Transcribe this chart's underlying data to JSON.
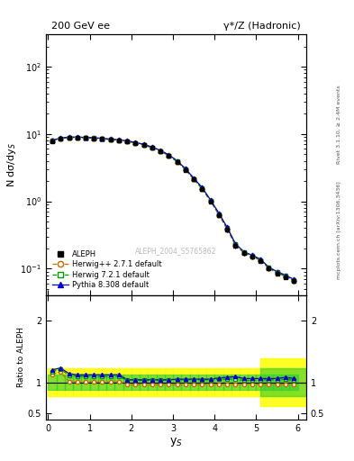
{
  "title_left": "200 GeV ee",
  "title_right": "γ*/Z (Hadronic)",
  "ylabel_main": "N dσ/dy$_S$",
  "ylabel_ratio": "Ratio to ALEPH",
  "xlabel": "y$_S$",
  "right_label_top": "Rivet 3.1.10, ≥ 2.4M events",
  "right_label_bottom": "mcplots.cern.ch [arXiv:1306.3436]",
  "watermark": "ALEPH_2004_S5765862",
  "ylim_main": [
    0.04,
    300
  ],
  "ylim_ratio": [
    0.4,
    2.4
  ],
  "yticks_ratio": [
    0.5,
    1.0,
    2.0
  ],
  "yticklabels_ratio": [
    "0.5",
    "1",
    "2"
  ],
  "xlim": [
    -0.05,
    6.2
  ],
  "x_data": [
    0.1,
    0.3,
    0.5,
    0.7,
    0.9,
    1.1,
    1.3,
    1.5,
    1.7,
    1.9,
    2.1,
    2.3,
    2.5,
    2.7,
    2.9,
    3.1,
    3.3,
    3.5,
    3.7,
    3.9,
    4.1,
    4.3,
    4.5,
    4.7,
    4.9,
    5.1,
    5.3,
    5.5,
    5.7,
    5.9
  ],
  "aleph_y": [
    7.8,
    8.5,
    8.8,
    8.8,
    8.7,
    8.6,
    8.4,
    8.2,
    8.0,
    7.7,
    7.3,
    6.8,
    6.2,
    5.5,
    4.7,
    3.8,
    2.9,
    2.1,
    1.5,
    1.0,
    0.62,
    0.38,
    0.22,
    0.17,
    0.15,
    0.13,
    0.1,
    0.085,
    0.075,
    0.065
  ],
  "aleph_err": [
    0.3,
    0.3,
    0.3,
    0.3,
    0.3,
    0.3,
    0.3,
    0.3,
    0.28,
    0.26,
    0.24,
    0.22,
    0.18,
    0.16,
    0.14,
    0.12,
    0.09,
    0.08,
    0.06,
    0.05,
    0.04,
    0.03,
    0.02,
    0.015,
    0.012,
    0.01,
    0.008,
    0.007,
    0.006,
    0.005
  ],
  "herwig_pp_y": [
    7.9,
    8.5,
    8.85,
    8.85,
    8.75,
    8.65,
    8.45,
    8.25,
    8.05,
    7.75,
    7.35,
    6.85,
    6.25,
    5.55,
    4.75,
    3.85,
    2.95,
    2.12,
    1.52,
    1.01,
    0.63,
    0.385,
    0.222,
    0.172,
    0.152,
    0.132,
    0.101,
    0.086,
    0.076,
    0.066
  ],
  "herwig72_y": [
    8.0,
    8.6,
    8.9,
    8.9,
    8.8,
    8.7,
    8.5,
    8.3,
    8.1,
    7.8,
    7.4,
    6.9,
    6.3,
    5.6,
    4.8,
    3.9,
    3.0,
    2.15,
    1.55,
    1.02,
    0.65,
    0.4,
    0.23,
    0.175,
    0.155,
    0.135,
    0.103,
    0.088,
    0.078,
    0.067
  ],
  "pythia_y": [
    8.1,
    8.7,
    9.0,
    9.0,
    8.9,
    8.8,
    8.6,
    8.4,
    8.2,
    7.9,
    7.5,
    7.0,
    6.4,
    5.7,
    4.9,
    4.0,
    3.05,
    2.2,
    1.6,
    1.05,
    0.67,
    0.41,
    0.235,
    0.178,
    0.158,
    0.138,
    0.105,
    0.09,
    0.08,
    0.069
  ],
  "ratio_herwig_pp": [
    1.13,
    1.17,
    1.01,
    1.005,
    1.005,
    1.005,
    1.005,
    1.005,
    1.005,
    0.97,
    0.96,
    0.96,
    0.96,
    0.96,
    0.96,
    0.96,
    0.96,
    0.96,
    0.96,
    0.97,
    0.97,
    0.97,
    0.97,
    0.97,
    0.97,
    0.97,
    0.97,
    0.97,
    0.97,
    0.97
  ],
  "ratio_herwig72": [
    1.17,
    1.21,
    1.11,
    1.1,
    1.09,
    1.09,
    1.09,
    1.09,
    1.09,
    1.03,
    1.03,
    1.03,
    1.03,
    1.03,
    1.04,
    1.04,
    1.04,
    1.04,
    1.04,
    1.04,
    1.05,
    1.05,
    1.05,
    1.03,
    1.03,
    1.04,
    1.04,
    1.04,
    1.05,
    1.03
  ],
  "ratio_pythia": [
    1.2,
    1.23,
    1.14,
    1.12,
    1.12,
    1.12,
    1.12,
    1.12,
    1.12,
    1.04,
    1.04,
    1.04,
    1.04,
    1.04,
    1.04,
    1.05,
    1.05,
    1.05,
    1.05,
    1.05,
    1.07,
    1.08,
    1.09,
    1.06,
    1.06,
    1.06,
    1.06,
    1.06,
    1.08,
    1.06
  ],
  "color_aleph": "#000000",
  "color_herwig_pp": "#cc6600",
  "color_herwig72": "#009900",
  "color_pythia": "#0000cc",
  "band_yellow": "#ffff00",
  "band_green": "#33cc33"
}
